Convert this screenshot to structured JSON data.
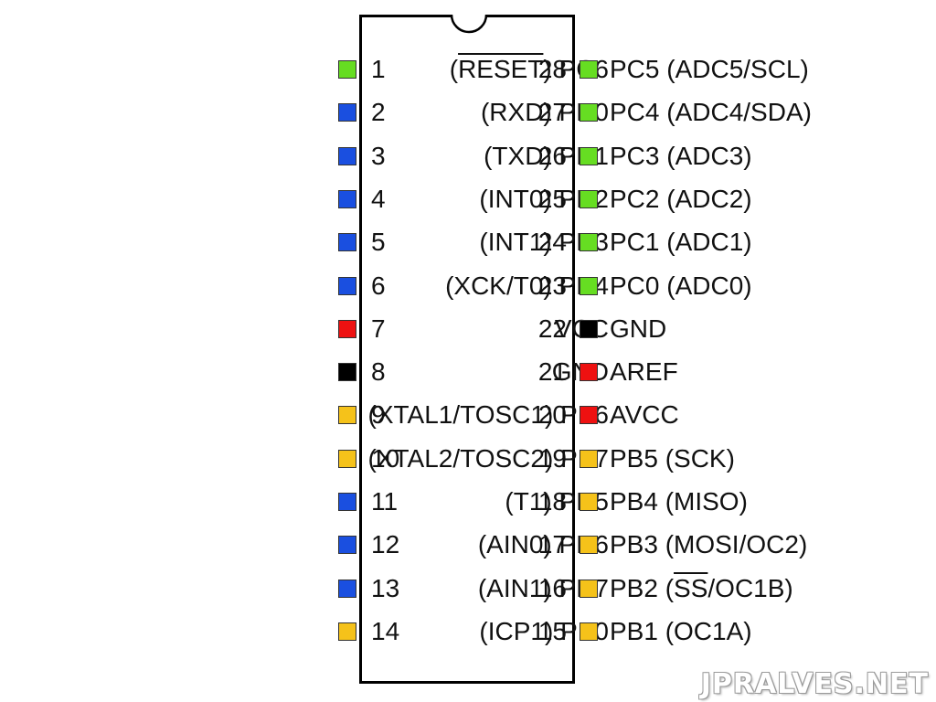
{
  "colors": {
    "portC": "#66dd22",
    "portD": "#1a4fe0",
    "power": "#ee1111",
    "ground": "#000000",
    "portB": "#f5c21a"
  },
  "pins_left": [
    {
      "num": "1",
      "prefix": "(",
      "overline": "RESET",
      "mid": ")",
      "port": " PC6",
      "color": "portC"
    },
    {
      "num": "2",
      "prefix": "(RXD)",
      "overline": "",
      "mid": "",
      "port": " PD0",
      "color": "portD"
    },
    {
      "num": "3",
      "prefix": "(TXD)",
      "overline": "",
      "mid": "",
      "port": " PD1",
      "color": "portD"
    },
    {
      "num": "4",
      "prefix": "(INT0)",
      "overline": "",
      "mid": "",
      "port": " PD2",
      "color": "portD"
    },
    {
      "num": "5",
      "prefix": "(INT1)",
      "overline": "",
      "mid": "",
      "port": " PD3",
      "color": "portD"
    },
    {
      "num": "6",
      "prefix": "(XCK/T0)",
      "overline": "",
      "mid": "",
      "port": " PD4",
      "color": "portD"
    },
    {
      "num": "7",
      "prefix": "",
      "overline": "",
      "mid": "",
      "port": "VCC",
      "color": "power"
    },
    {
      "num": "8",
      "prefix": "",
      "overline": "",
      "mid": "",
      "port": "GND",
      "color": "ground"
    },
    {
      "num": "9",
      "prefix": "(XTAL1/TOSC1)",
      "overline": "",
      "mid": "",
      "port": " PB6",
      "color": "portB"
    },
    {
      "num": "10",
      "prefix": "(XTAL2/TOSC2)",
      "overline": "",
      "mid": "",
      "port": " PB7",
      "color": "portB"
    },
    {
      "num": "11",
      "prefix": "(T1)",
      "overline": "",
      "mid": "",
      "port": " PD5",
      "color": "portD"
    },
    {
      "num": "12",
      "prefix": "(AIN0)",
      "overline": "",
      "mid": "",
      "port": " PD6",
      "color": "portD"
    },
    {
      "num": "13",
      "prefix": "(AIN1)",
      "overline": "",
      "mid": "",
      "port": " PD7",
      "color": "portD"
    },
    {
      "num": "14",
      "prefix": "(ICP1)",
      "overline": "",
      "mid": "",
      "port": " PB0",
      "color": "portB"
    }
  ],
  "pins_right": [
    {
      "num": "28",
      "port": "PC5 ",
      "pre": "(ADC5/SCL)",
      "overline": "",
      "post": "",
      "color": "portC"
    },
    {
      "num": "27",
      "port": "PC4 ",
      "pre": "(ADC4/SDA)",
      "overline": "",
      "post": "",
      "color": "portC"
    },
    {
      "num": "26",
      "port": "PC3 ",
      "pre": "(ADC3)",
      "overline": "",
      "post": "",
      "color": "portC"
    },
    {
      "num": "25",
      "port": "PC2 ",
      "pre": "(ADC2)",
      "overline": "",
      "post": "",
      "color": "portC"
    },
    {
      "num": "24",
      "port": "PC1 ",
      "pre": "(ADC1)",
      "overline": "",
      "post": "",
      "color": "portC"
    },
    {
      "num": "23",
      "port": "PC0 ",
      "pre": "(ADC0)",
      "overline": "",
      "post": "",
      "color": "portC"
    },
    {
      "num": "22",
      "port": "GND",
      "pre": "",
      "overline": "",
      "post": "",
      "color": "ground"
    },
    {
      "num": "21",
      "port": "AREF",
      "pre": "",
      "overline": "",
      "post": "",
      "color": "power"
    },
    {
      "num": "20",
      "port": "AVCC",
      "pre": "",
      "overline": "",
      "post": "",
      "color": "power"
    },
    {
      "num": "19",
      "port": "PB5 ",
      "pre": "(SCK)",
      "overline": "",
      "post": "",
      "color": "portB"
    },
    {
      "num": "18",
      "port": "PB4 ",
      "pre": "(MISO)",
      "overline": "",
      "post": "",
      "color": "portB"
    },
    {
      "num": "17",
      "port": "PB3 ",
      "pre": "(MOSI/OC2)",
      "overline": "",
      "post": "",
      "color": "portB"
    },
    {
      "num": "16",
      "port": "PB2 ",
      "pre": "(",
      "overline": "SS",
      "post": "/OC1B)",
      "color": "portB"
    },
    {
      "num": "15",
      "port": "PB1 ",
      "pre": "(OC1A)",
      "overline": "",
      "post": "",
      "color": "portB"
    }
  ],
  "watermark": "JPRALVES.NET"
}
